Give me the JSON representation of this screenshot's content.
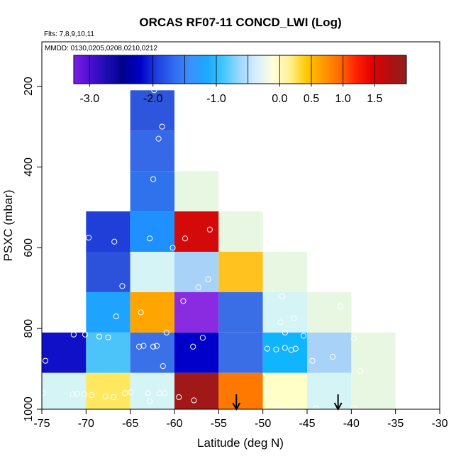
{
  "chart_data": {
    "type": "heatmap",
    "title": "ORCAS RF07-11 CONCD_LWI (Log)",
    "flights_label": "Flts: 7,8,9,10,11",
    "dates_label": "MMDD: 0130,0205,0208,0210,0212",
    "xlabel": "Latitude (deg N)",
    "ylabel": "PSXC (mbar)",
    "xlim": [
      -75,
      -30
    ],
    "ylim": [
      1000,
      90
    ],
    "x_ticks": [
      -75,
      -70,
      -65,
      -60,
      -55,
      -50,
      -45,
      -40,
      -35,
      -30
    ],
    "x_tick_labels": [
      "-75",
      "-70",
      "-65",
      "-60",
      "-55",
      "-50",
      "-45",
      "-40",
      "-35",
      "-30"
    ],
    "y_ticks": [
      200,
      400,
      600,
      800,
      1000
    ],
    "y_tick_labels": [
      "200",
      "400",
      "600",
      "800",
      "1000"
    ],
    "colorbar": {
      "range": [
        -3.25,
        2.0
      ],
      "colors": [
        "#7B1FE8",
        "#4B0FD0",
        "#1A0DB0",
        "#000090",
        "#0000C8",
        "#1E3FE0",
        "#2F6AF0",
        "#3C8FFF",
        "#1CA8FF",
        "#40C8FF",
        "#9FD8FF",
        "#D8EEFF",
        "#FFFFD8",
        "#FFF090",
        "#FFC800",
        "#FF9A00",
        "#FF6A00",
        "#FF2000",
        "#E00000",
        "#B01010",
        "#902020"
      ],
      "tick_values": [
        -3.0,
        -2.0,
        -1.0,
        0.0,
        0.5,
        1.0,
        1.5
      ],
      "tick_labels": [
        "-3.0",
        "-2.0",
        "-1.0",
        "0.0",
        "0.5",
        "1.0",
        "1.5"
      ],
      "line_values": [
        -3.0,
        -2.5,
        -2.0,
        -1.5,
        -1.0,
        -0.5,
        0.0,
        0.5,
        1.0,
        1.5
      ]
    },
    "cells": [
      {
        "x0": -65,
        "x1": -60,
        "y0": 210,
        "y1": 310,
        "color": "#2E56DC"
      },
      {
        "x0": -65,
        "x1": -60,
        "y0": 310,
        "y1": 410,
        "color": "#3569E8"
      },
      {
        "x0": -65,
        "x1": -60,
        "y0": 410,
        "y1": 510,
        "color": "#2F73EC"
      },
      {
        "x0": -60,
        "x1": -55,
        "y0": 410,
        "y1": 510,
        "color": "#E8F7E2"
      },
      {
        "x0": -70,
        "x1": -65,
        "y0": 510,
        "y1": 610,
        "color": "#1F3FD8"
      },
      {
        "x0": -65,
        "x1": -60,
        "y0": 510,
        "y1": 610,
        "color": "#1E90FF"
      },
      {
        "x0": -60,
        "x1": -55,
        "y0": 510,
        "y1": 610,
        "color": "#D40A0A"
      },
      {
        "x0": -55,
        "x1": -50,
        "y0": 510,
        "y1": 610,
        "color": "#E8F7E2"
      },
      {
        "x0": -70,
        "x1": -65,
        "y0": 610,
        "y1": 710,
        "color": "#2C52DC"
      },
      {
        "x0": -65,
        "x1": -60,
        "y0": 610,
        "y1": 710,
        "color": "#D4F4F6"
      },
      {
        "x0": -60,
        "x1": -55,
        "y0": 610,
        "y1": 710,
        "color": "#A8D2F8"
      },
      {
        "x0": -55,
        "x1": -50,
        "y0": 610,
        "y1": 710,
        "color": "#FFC21E"
      },
      {
        "x0": -50,
        "x1": -45,
        "y0": 610,
        "y1": 710,
        "color": "#E8F7E2"
      },
      {
        "x0": -70,
        "x1": -65,
        "y0": 710,
        "y1": 810,
        "color": "#1EA4FF"
      },
      {
        "x0": -65,
        "x1": -60,
        "y0": 710,
        "y1": 810,
        "color": "#FFA500"
      },
      {
        "x0": -60,
        "x1": -55,
        "y0": 710,
        "y1": 810,
        "color": "#8A2BE2"
      },
      {
        "x0": -55,
        "x1": -50,
        "y0": 710,
        "y1": 810,
        "color": "#3A6EE6"
      },
      {
        "x0": -50,
        "x1": -45,
        "y0": 710,
        "y1": 810,
        "color": "#D4F4F6"
      },
      {
        "x0": -45,
        "x1": -40,
        "y0": 710,
        "y1": 810,
        "color": "#E8F7E2"
      },
      {
        "x0": -75,
        "x1": -70,
        "y0": 810,
        "y1": 910,
        "color": "#1010C8"
      },
      {
        "x0": -70,
        "x1": -65,
        "y0": 810,
        "y1": 910,
        "color": "#4CC4FA"
      },
      {
        "x0": -65,
        "x1": -60,
        "y0": 810,
        "y1": 910,
        "color": "#3A70E8"
      },
      {
        "x0": -60,
        "x1": -55,
        "y0": 810,
        "y1": 910,
        "color": "#0000C8"
      },
      {
        "x0": -55,
        "x1": -50,
        "y0": 810,
        "y1": 910,
        "color": "#3A6EE6"
      },
      {
        "x0": -50,
        "x1": -45,
        "y0": 810,
        "y1": 910,
        "color": "#10B4FF"
      },
      {
        "x0": -45,
        "x1": -40,
        "y0": 810,
        "y1": 910,
        "color": "#A8D2F8"
      },
      {
        "x0": -40,
        "x1": -35,
        "y0": 810,
        "y1": 910,
        "color": "#E8F7E2"
      },
      {
        "x0": -75,
        "x1": -70,
        "y0": 910,
        "y1": 1000,
        "color": "#D4F4F6"
      },
      {
        "x0": -70,
        "x1": -65,
        "y0": 910,
        "y1": 1000,
        "color": "#FFE860"
      },
      {
        "x0": -65,
        "x1": -60,
        "y0": 910,
        "y1": 1000,
        "color": "#D4F4F6"
      },
      {
        "x0": -60,
        "x1": -55,
        "y0": 910,
        "y1": 1000,
        "color": "#A01818"
      },
      {
        "x0": -55,
        "x1": -50,
        "y0": 910,
        "y1": 1000,
        "color": "#FF7800"
      },
      {
        "x0": -50,
        "x1": -45,
        "y0": 910,
        "y1": 1000,
        "color": "#FFFFC8"
      },
      {
        "x0": -45,
        "x1": -40,
        "y0": 910,
        "y1": 1000,
        "color": "#D4F4F6"
      },
      {
        "x0": -40,
        "x1": -35,
        "y0": 910,
        "y1": 1000,
        "color": "#E8F7E2"
      }
    ],
    "points": [
      [
        -62.3,
        210
      ],
      [
        -61.4,
        300
      ],
      [
        -61.8,
        330
      ],
      [
        -62.4,
        430
      ],
      [
        -69.7,
        575
      ],
      [
        -66.8,
        585
      ],
      [
        -62.8,
        577
      ],
      [
        -60.2,
        600
      ],
      [
        -58.8,
        577
      ],
      [
        -56.0,
        555
      ],
      [
        -65.9,
        695
      ],
      [
        -59.0,
        732
      ],
      [
        -57.3,
        698
      ],
      [
        -56.2,
        678
      ],
      [
        -66.6,
        770
      ],
      [
        -63.8,
        760
      ],
      [
        -47.8,
        720
      ],
      [
        -46.5,
        775
      ],
      [
        -41.2,
        745
      ],
      [
        -71.4,
        815
      ],
      [
        -70.1,
        815
      ],
      [
        -68.5,
        820
      ],
      [
        -67.5,
        822
      ],
      [
        -64.0,
        845
      ],
      [
        -63.5,
        843
      ],
      [
        -62.4,
        845
      ],
      [
        -62.0,
        843
      ],
      [
        -60.9,
        810
      ],
      [
        -57.9,
        845
      ],
      [
        -56.8,
        823
      ],
      [
        -48.0,
        785
      ],
      [
        -47.5,
        810
      ],
      [
        -49.5,
        850
      ],
      [
        -48.5,
        852
      ],
      [
        -47.5,
        848
      ],
      [
        -46.8,
        853
      ],
      [
        -46.3,
        850
      ],
      [
        -45.4,
        818
      ],
      [
        -44.4,
        880
      ],
      [
        -42.1,
        870
      ],
      [
        -39.7,
        825
      ],
      [
        -39.0,
        905
      ],
      [
        -74.6,
        880
      ],
      [
        -61.3,
        893
      ],
      [
        -74.9,
        960
      ],
      [
        -71.5,
        963
      ],
      [
        -71.0,
        962
      ],
      [
        -70.2,
        963
      ],
      [
        -69.4,
        965
      ],
      [
        -67.8,
        968
      ],
      [
        -66.9,
        970
      ],
      [
        -65.6,
        960
      ],
      [
        -64.9,
        958
      ],
      [
        -63.0,
        960
      ],
      [
        -62.8,
        980
      ],
      [
        -61.7,
        960
      ],
      [
        -61.1,
        960
      ],
      [
        -59.5,
        970
      ],
      [
        -57.8,
        978
      ],
      [
        -49.3,
        960
      ],
      [
        -48.8,
        990
      ],
      [
        -48.0,
        995
      ],
      [
        -47.5,
        998
      ],
      [
        -46.7,
        997
      ],
      [
        -46.0,
        998
      ],
      [
        -44.0,
        998
      ],
      [
        -39.7,
        998
      ]
    ],
    "arrows": [
      -53,
      -41.5
    ]
  }
}
